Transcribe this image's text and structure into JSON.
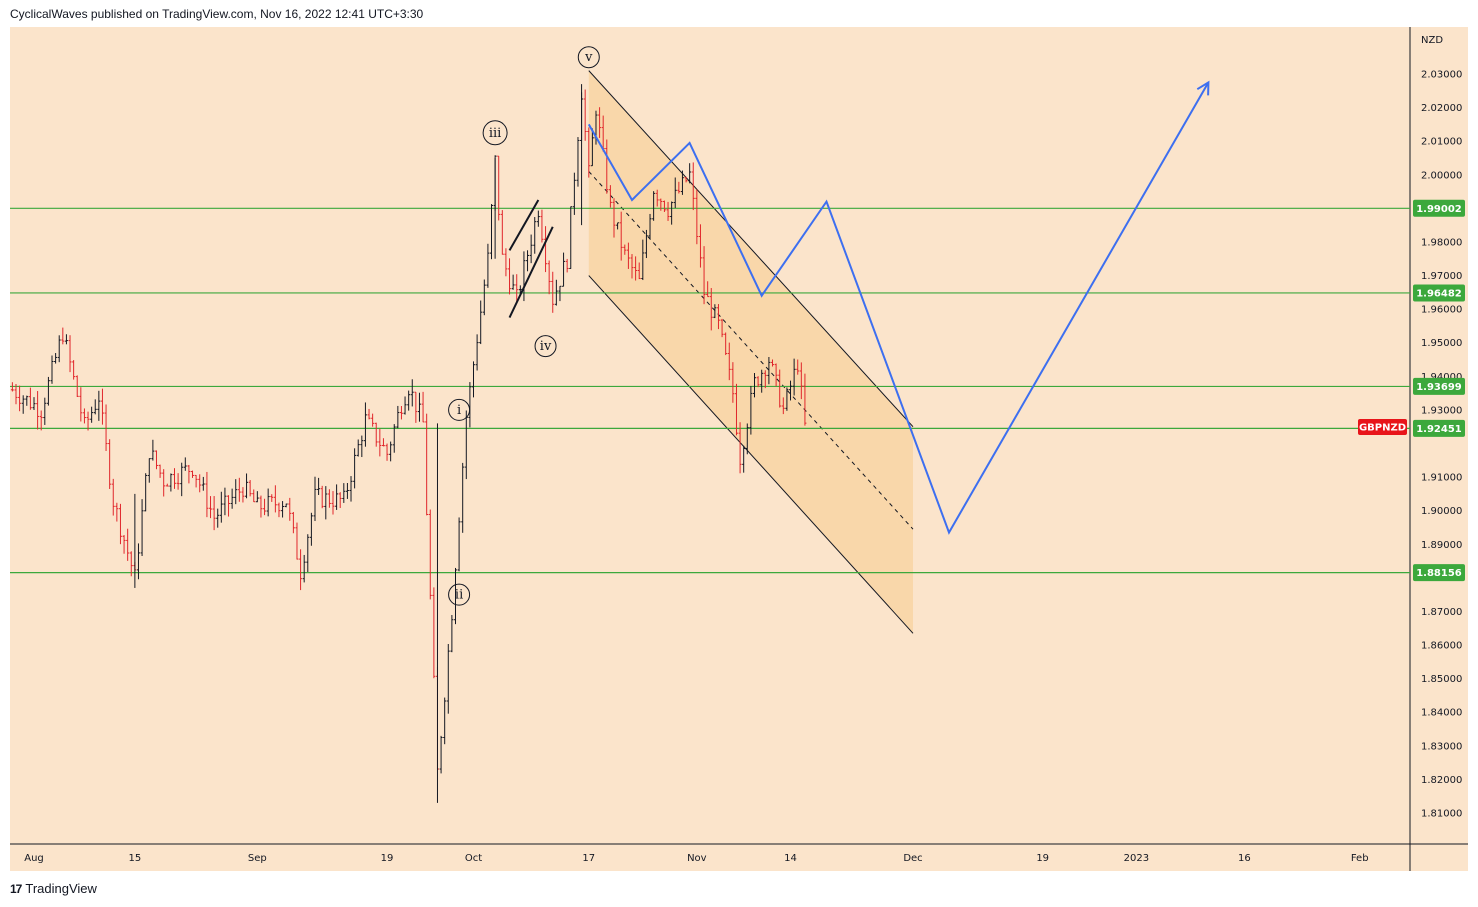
{
  "header": {
    "text": "CyclicalWaves published on TradingView.com, Nov 16, 2022 12:41 UTC+3:30"
  },
  "footer": {
    "logo": "17",
    "brand": "TradingView"
  },
  "colors": {
    "background": "#fbe4cb",
    "support_lines": "#3ca83c",
    "forecast_path": "#3d6ff0",
    "up_bar": "#131722",
    "down_bar": "#e0262b",
    "channel_fill": "#f7c98a",
    "level_tag": "#3ca83c",
    "symbol_tag": "#e8141a"
  },
  "chart_data": {
    "type": "candlestick",
    "symbol": "GBPNZD",
    "currency_label": "NZD",
    "ylim": [
      1.8,
      2.0425
    ],
    "y_ticks": [
      "2.03000",
      "2.02000",
      "2.01000",
      "2.00000",
      "1.98000",
      "1.97000",
      "1.96000",
      "1.95000",
      "1.94000",
      "1.93000",
      "1.91000",
      "1.90000",
      "1.89000",
      "1.87000",
      "1.86000",
      "1.85000",
      "1.84000",
      "1.83000",
      "1.82000",
      "1.81000"
    ],
    "x_ticks": [
      {
        "label": "Aug",
        "date": "2022-08-01"
      },
      {
        "label": "15",
        "date": "2022-08-15"
      },
      {
        "label": "Sep",
        "date": "2022-09-01"
      },
      {
        "label": "19",
        "date": "2022-09-19"
      },
      {
        "label": "Oct",
        "date": "2022-10-01"
      },
      {
        "label": "17",
        "date": "2022-10-17"
      },
      {
        "label": "Nov",
        "date": "2022-11-01"
      },
      {
        "label": "14",
        "date": "2022-11-14"
      },
      {
        "label": "Dec",
        "date": "2022-12-01"
      },
      {
        "label": "19",
        "date": "2022-12-19"
      },
      {
        "label": "2023",
        "date": "2023-01-01"
      },
      {
        "label": "16",
        "date": "2023-01-16"
      },
      {
        "label": "Feb",
        "date": "2023-02-01"
      }
    ],
    "horizontal_levels": [
      {
        "value": 1.99002,
        "label": "1.99002"
      },
      {
        "value": 1.96482,
        "label": "1.96482"
      },
      {
        "value": 1.93699,
        "label": "1.93699"
      },
      {
        "value": 1.92451,
        "label": "1.92451"
      },
      {
        "value": 1.88156,
        "label": "1.88156"
      }
    ],
    "current_price": {
      "value": 1.9249,
      "symbol": "GBPNZD"
    },
    "price_path": [
      [
        "2022-07-29",
        1.936
      ],
      [
        "2022-08-02",
        1.93
      ],
      [
        "2022-08-05",
        1.953
      ],
      [
        "2022-08-08",
        1.925
      ],
      [
        "2022-08-10",
        1.934
      ],
      [
        "2022-08-12",
        1.903
      ],
      [
        "2022-08-15",
        1.88
      ],
      [
        "2022-08-17",
        1.918
      ],
      [
        "2022-08-19",
        1.909
      ],
      [
        "2022-08-23",
        1.913
      ],
      [
        "2022-08-26",
        1.898
      ],
      [
        "2022-08-30",
        1.907
      ],
      [
        "2022-09-01",
        1.901
      ],
      [
        "2022-09-05",
        1.903
      ],
      [
        "2022-09-07",
        1.882
      ],
      [
        "2022-09-09",
        1.904
      ],
      [
        "2022-09-13",
        1.903
      ],
      [
        "2022-09-16",
        1.927
      ],
      [
        "2022-09-19",
        1.917
      ],
      [
        "2022-09-21",
        1.932
      ],
      [
        "2022-09-22",
        1.937
      ],
      [
        "2022-09-24",
        1.926
      ],
      [
        "2022-09-26",
        1.822
      ],
      [
        "2022-09-28",
        1.87
      ],
      [
        "2022-09-30",
        1.928
      ],
      [
        "2022-10-03",
        1.975
      ],
      [
        "2022-10-04",
        2.004
      ],
      [
        "2022-10-05",
        1.975
      ],
      [
        "2022-10-07",
        1.963
      ],
      [
        "2022-10-10",
        1.99
      ],
      [
        "2022-10-12",
        1.963
      ],
      [
        "2022-10-14",
        1.975
      ],
      [
        "2022-10-16",
        2.025
      ],
      [
        "2022-10-17",
        2.0
      ],
      [
        "2022-10-18",
        2.02
      ],
      [
        "2022-10-20",
        1.99
      ],
      [
        "2022-10-22",
        1.976
      ],
      [
        "2022-10-24",
        1.968
      ],
      [
        "2022-10-26",
        1.996
      ],
      [
        "2022-10-28",
        1.99
      ],
      [
        "2022-10-31",
        2.0
      ],
      [
        "2022-11-02",
        1.965
      ],
      [
        "2022-11-04",
        1.955
      ],
      [
        "2022-11-06",
        1.935
      ],
      [
        "2022-11-07",
        1.916
      ],
      [
        "2022-11-09",
        1.938
      ],
      [
        "2022-11-11",
        1.945
      ],
      [
        "2022-11-13",
        1.93
      ],
      [
        "2022-11-15",
        1.944
      ],
      [
        "2022-11-16",
        1.925
      ]
    ],
    "wave_labels": [
      {
        "label": "i",
        "date": "2022-09-29",
        "y": 1.93
      },
      {
        "label": "ii",
        "date": "2022-09-29",
        "y": 1.875
      },
      {
        "label": "iii",
        "date": "2022-10-04",
        "y": 2.0125
      },
      {
        "label": "iv",
        "date": "2022-10-11",
        "y": 1.949
      },
      {
        "label": "v",
        "date": "2022-10-17",
        "y": 2.035
      }
    ],
    "wedge": {
      "upper": [
        [
          "2022-10-06",
          1.9775
        ],
        [
          "2022-10-10",
          1.9925
        ]
      ],
      "lower": [
        [
          "2022-10-06",
          1.9575
        ],
        [
          "2022-10-12",
          1.9845
        ]
      ]
    },
    "channel": {
      "upper": [
        [
          "2022-10-17",
          2.031
        ],
        [
          "2022-12-01",
          1.925
        ]
      ],
      "middle": [
        [
          "2022-10-17",
          2.001
        ],
        [
          "2022-12-01",
          1.8945
        ]
      ],
      "lower": [
        [
          "2022-10-17",
          1.97
        ],
        [
          "2022-12-01",
          1.8635
        ]
      ]
    },
    "forecast_path": [
      [
        "2022-10-17",
        2.015
      ],
      [
        "2022-10-23",
        1.9925
      ],
      [
        "2022-10-31",
        2.0095
      ],
      [
        "2022-11-10",
        1.964
      ],
      [
        "2022-11-19",
        1.992
      ],
      [
        "2022-12-06",
        1.8935
      ],
      [
        "2023-01-11",
        2.0275
      ]
    ]
  }
}
